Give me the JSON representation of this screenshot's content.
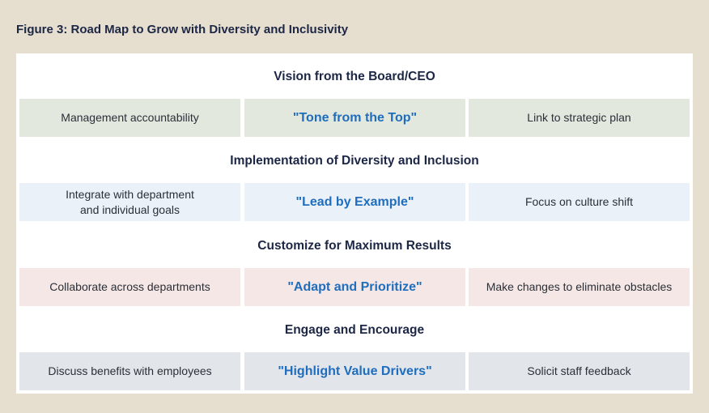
{
  "title": "Figure 3: Road Map to Grow with Diversity and Inclusivity",
  "sections": [
    {
      "heading": "Vision from the Board/CEO",
      "cells": [
        "Management accountability",
        "\"Tone from the Top\"",
        "Link to strategic plan"
      ]
    },
    {
      "heading": "Implementation of Diversity and Inclusion",
      "cells": [
        "Integrate with department\nand individual goals",
        "\"Lead by Example\"",
        "Focus on culture shift"
      ]
    },
    {
      "heading": "Customize for Maximum Results",
      "cells": [
        "Collaborate across departments",
        "\"Adapt and Prioritize\"",
        "Make changes to eliminate obstacles"
      ]
    },
    {
      "heading": "Engage and Encourage",
      "cells": [
        "Discuss benefits with employees",
        "\"Highlight Value Drivers\"",
        "Solicit staff feedback"
      ]
    }
  ]
}
